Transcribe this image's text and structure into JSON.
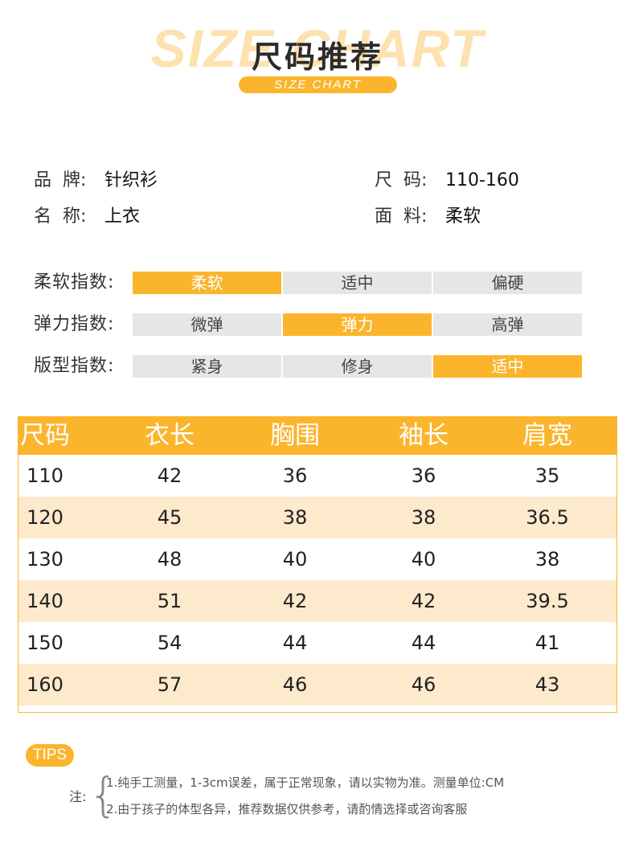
{
  "header": {
    "background_text": "SIZE CHART",
    "title": "尺码推荐",
    "subtitle": "SIZE CHART"
  },
  "product": {
    "left": [
      {
        "label": "品  牌:",
        "value": "针织衫"
      },
      {
        "label": "名  称:",
        "value": "上衣"
      }
    ],
    "right": [
      {
        "label": "尺  码:",
        "value": "110-160"
      },
      {
        "label": "面  料:",
        "value": "柔软"
      }
    ]
  },
  "indices": [
    {
      "label": "柔软指数:",
      "options": [
        "柔软",
        "适中",
        "偏硬"
      ],
      "selected": 0
    },
    {
      "label": "弹力指数:",
      "options": [
        "微弹",
        "弹力",
        "高弹"
      ],
      "selected": 1
    },
    {
      "label": "版型指数:",
      "options": [
        "紧身",
        "修身",
        "适中"
      ],
      "selected": 2
    }
  ],
  "table": {
    "header": [
      "尺码",
      "衣长",
      "胸围",
      "袖长",
      "肩宽"
    ],
    "rows": [
      [
        "110",
        "42",
        "36",
        "36",
        "35"
      ],
      [
        "120",
        "45",
        "38",
        "38",
        "36.5"
      ],
      [
        "130",
        "48",
        "40",
        "40",
        "38"
      ],
      [
        "140",
        "51",
        "42",
        "42",
        "39.5"
      ],
      [
        "150",
        "54",
        "44",
        "44",
        "41"
      ],
      [
        "160",
        "57",
        "46",
        "46",
        "43"
      ]
    ]
  },
  "tips": {
    "badge": "TIPS",
    "note_label": "注:",
    "lines": [
      "1.纯手工测量，1-3cm误差，属于正常现象，请以实物为准。测量单位:CM",
      "2.由于孩子的体型各异，推荐数据仅供参考，请酌情选择或咨询客服"
    ]
  }
}
